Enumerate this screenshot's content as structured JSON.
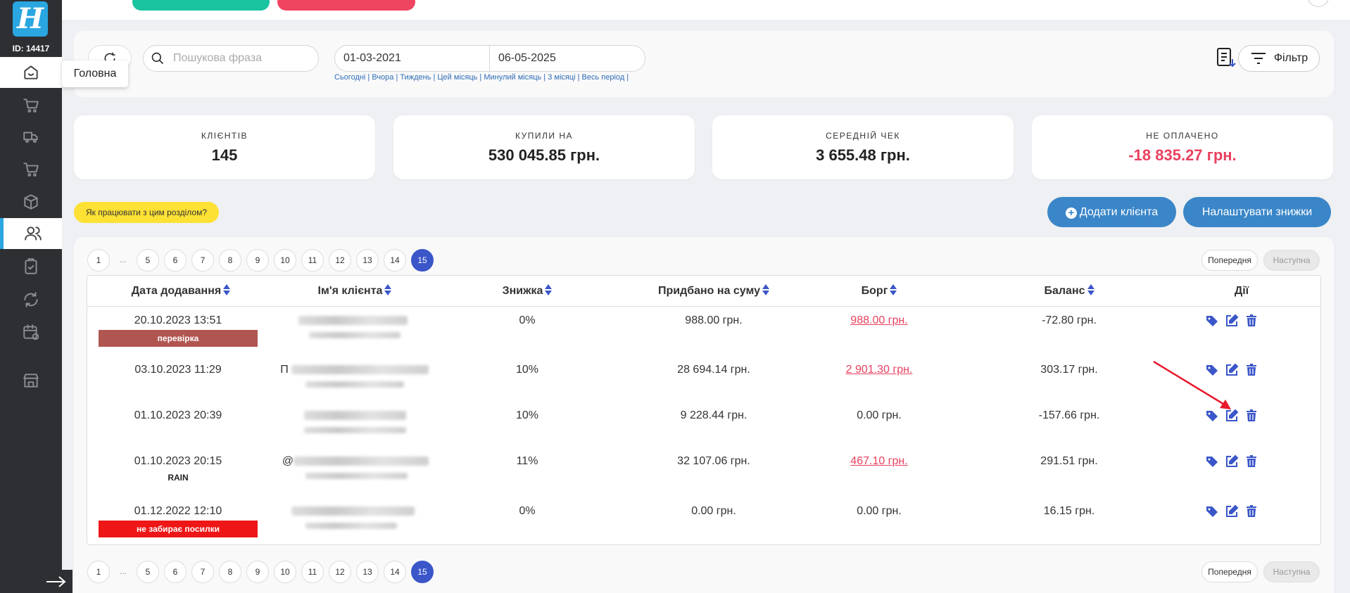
{
  "sidebar": {
    "logo": "H",
    "user_id": "ID: 14417",
    "tooltip": "Головна",
    "icons": [
      "home-icon",
      "cart-icon",
      "delivery-icon",
      "basket-icon",
      "box-icon",
      "users-icon",
      "clipboard-icon",
      "sync-icon",
      "calendar-icon",
      "store-icon"
    ]
  },
  "filters": {
    "search_placeholder": "Пошукова фраза",
    "date_from": "01-03-2021",
    "date_to": "06-05-2025",
    "quick_ranges": "Сьогодні | Вчора | Тиждень | Цей місяць | Минулий місяць | 3 місяці | Весь період |",
    "filter_label": "Фільтр"
  },
  "stats": [
    {
      "label": "Клієнтів",
      "value": "145"
    },
    {
      "label": "Купили на",
      "value": "530 045.85 грн."
    },
    {
      "label": "Середній чек",
      "value": "3 655.48 грн."
    },
    {
      "label": "Не оплачено",
      "value": "-18 835.27 грн."
    }
  ],
  "actions": {
    "help": "Як працювати з цим розділом?",
    "add_client": "Додати клієнта",
    "setup_discounts": "Налаштувати знижки"
  },
  "pagination": {
    "pages": [
      "1",
      "...",
      "5",
      "6",
      "7",
      "8",
      "9",
      "10",
      "11",
      "12",
      "13",
      "14",
      "15"
    ],
    "current": "15",
    "prev": "Попередня",
    "next": "Наступна"
  },
  "table": {
    "headers": [
      "Дата додавання",
      "Ім'я клієнта",
      "Знижка",
      "Придбано на суму",
      "Борг",
      "Баланс",
      "Дії"
    ],
    "rows": [
      {
        "date": "20.10.2023 13:51",
        "tag": "перевірка",
        "name_prefix": "",
        "discount": "0%",
        "purchased": "988.00 грн.",
        "debt": "988.00 грн.",
        "debt_link": true,
        "balance": "-72.80 грн."
      },
      {
        "date": "03.10.2023 11:29",
        "tag": "",
        "name_prefix": "П",
        "discount": "10%",
        "purchased": "28 694.14 грн.",
        "debt": "2 901.30 грн.",
        "debt_link": true,
        "balance": "303.17 грн."
      },
      {
        "date": "01.10.2023 20:39",
        "tag": "",
        "name_prefix": "",
        "discount": "10%",
        "purchased": "9 228.44 грн.",
        "debt": "0.00 грн.",
        "debt_link": false,
        "balance": "-157.66 грн."
      },
      {
        "date": "01.10.2023 20:15",
        "tag": "RAIN",
        "name_prefix": "@",
        "discount": "11%",
        "purchased": "32 107.06 грн.",
        "debt": "467.10 грн.",
        "debt_link": true,
        "balance": "291.51 грн."
      },
      {
        "date": "01.12.2022 12:10",
        "tag": "не забирає посилки",
        "name_prefix": "",
        "discount": "0%",
        "purchased": "0.00 грн.",
        "debt": "0.00 грн.",
        "debt_link": false,
        "balance": "16.15 грн."
      }
    ]
  },
  "colors": {
    "accent": "#3a56c8",
    "brand": "#2aa6e0",
    "negative": "#e8415f",
    "button": "#3a86c8"
  }
}
